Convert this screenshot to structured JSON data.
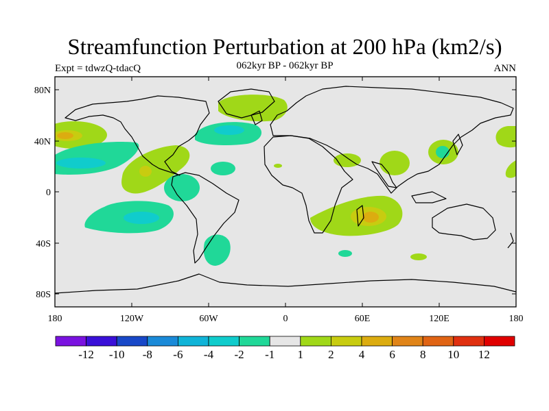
{
  "title": "Streamfunction Perturbation at 200 hPa (km2/s)",
  "subtitle_left": "Expt = tdwzQ-tdacQ",
  "subtitle_center": "062kyr BP - 062kyr BP",
  "subtitle_right": "ANN",
  "lat_ticks": [
    "80N",
    "40N",
    "0",
    "40S",
    "80S"
  ],
  "lon_ticks": [
    "180",
    "120W",
    "60W",
    "0",
    "60E",
    "120E",
    "180"
  ],
  "colorbar": {
    "colors": [
      "#7a12e0",
      "#3a10d8",
      "#1848c8",
      "#1a8ad8",
      "#10b4d8",
      "#10cccc",
      "#20d898",
      "#e6e6e6",
      "#a0d818",
      "#c8cc10",
      "#dcac10",
      "#e08418",
      "#e06414",
      "#e03010",
      "#e00000"
    ],
    "labels": [
      "-12",
      "-10",
      "-8",
      "-6",
      "-4",
      "-2",
      "-1",
      "1",
      "2",
      "4",
      "6",
      "8",
      "10",
      "12"
    ]
  },
  "map_colors": {
    "background": "#e6e6e6",
    "pos1": "#a0d818",
    "pos2": "#c8cc10",
    "pos3": "#dcac10",
    "neg1": "#20d898",
    "neg2": "#10cccc",
    "neg3": "#10b4d8"
  }
}
